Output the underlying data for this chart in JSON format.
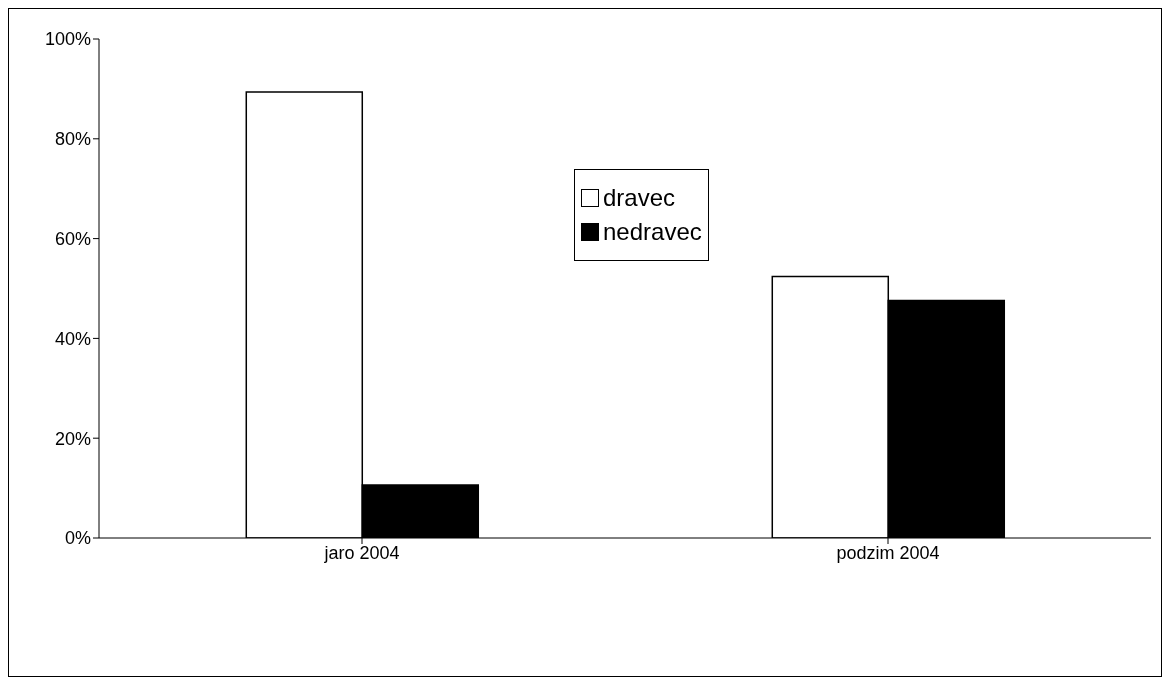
{
  "chart_data": {
    "type": "bar",
    "categories": [
      "jaro 2004",
      "podzim 2004"
    ],
    "series": [
      {
        "name": "dravec",
        "color": "#ffffff",
        "values": [
          89.4,
          52.4
        ]
      },
      {
        "name": "nedravec",
        "color": "#000000",
        "values": [
          10.6,
          47.6
        ]
      }
    ],
    "ylim": [
      0,
      100
    ],
    "yticks": [
      {
        "value": 0,
        "label": "0%"
      },
      {
        "value": 20,
        "label": "20%"
      },
      {
        "value": 40,
        "label": "40%"
      },
      {
        "value": 60,
        "label": "60%"
      },
      {
        "value": 80,
        "label": "80%"
      },
      {
        "value": 100,
        "label": "100%"
      }
    ],
    "grid": false,
    "legend": "top"
  }
}
